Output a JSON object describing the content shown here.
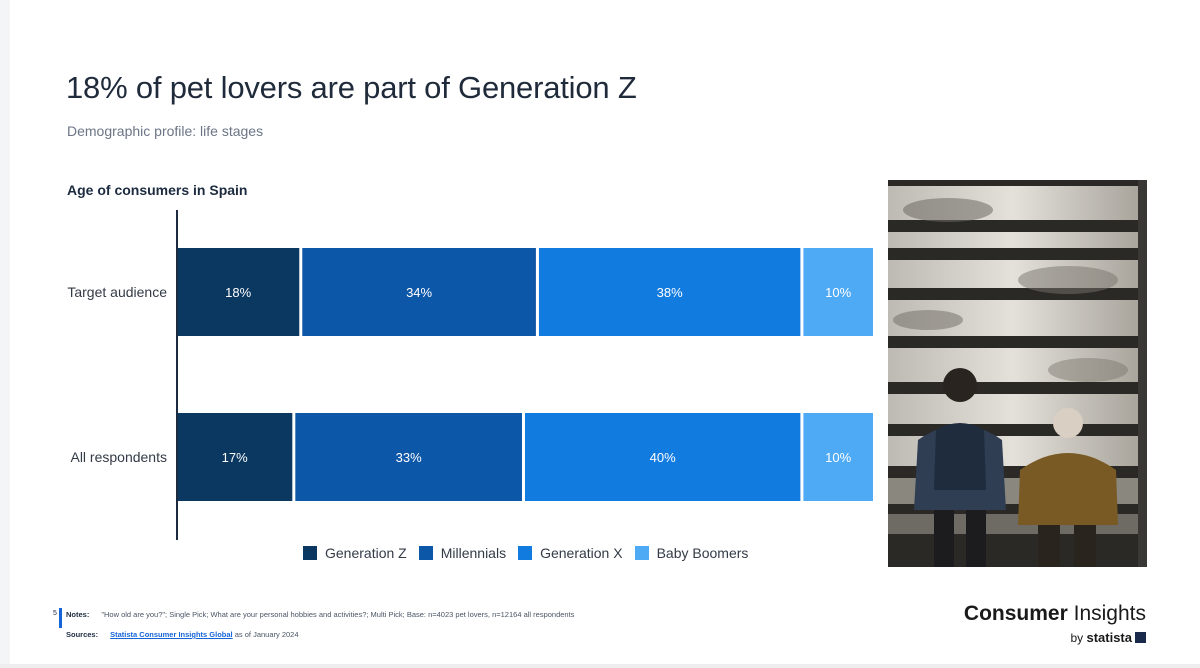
{
  "header": {
    "title": "18% of pet lovers are part of Generation Z",
    "subtitle": "Demographic profile: life stages"
  },
  "chart_data": {
    "type": "bar",
    "orientation": "horizontal",
    "stacked": true,
    "title": "Age of consumers in Spain",
    "unit": "%",
    "categories": [
      "Target audience",
      "All respondents"
    ],
    "series": [
      {
        "name": "Generation Z",
        "values": [
          18,
          17
        ],
        "color": "#0b3860"
      },
      {
        "name": "Millennials",
        "values": [
          34,
          33
        ],
        "color": "#0d57a8"
      },
      {
        "name": "Generation X",
        "values": [
          38,
          40
        ],
        "color": "#127be0"
      },
      {
        "name": "Baby Boomers",
        "values": [
          10,
          10
        ],
        "color": "#4faaf5"
      }
    ],
    "legend_position": "bottom",
    "grid": false
  },
  "photo": {
    "icon": "photo-people-on-stairs"
  },
  "footer": {
    "page_number": "5",
    "notes_label": "Notes:",
    "notes_text": "\"How old are you?\"; Single Pick; What are your personal hobbies and activities?; Multi Pick; Base: n=4023 pet lovers, n=12164 all respondents",
    "sources_label": "Sources:",
    "source_link": "Statista Consumer Insights Global",
    "source_suffix": " as of January 2024"
  },
  "brand": {
    "name_bold": "Consumer",
    "name_light": " Insights",
    "by": "by ",
    "statista": "statista"
  }
}
